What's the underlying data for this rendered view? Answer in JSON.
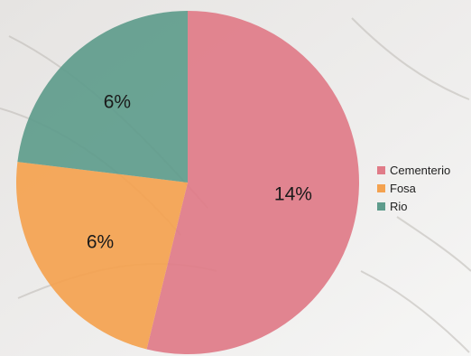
{
  "chart_data": {
    "type": "pie",
    "title": "",
    "categories": [
      "Cementerio",
      "Fosa",
      "Rio"
    ],
    "values": [
      14,
      6,
      6
    ],
    "labels": [
      "14%",
      "6%",
      "6%"
    ],
    "colors": [
      "#e07b88",
      "#f4a24f",
      "#5e9c8c"
    ],
    "start_angle_deg": 0,
    "direction": "clockwise",
    "legend_position": "right"
  }
}
